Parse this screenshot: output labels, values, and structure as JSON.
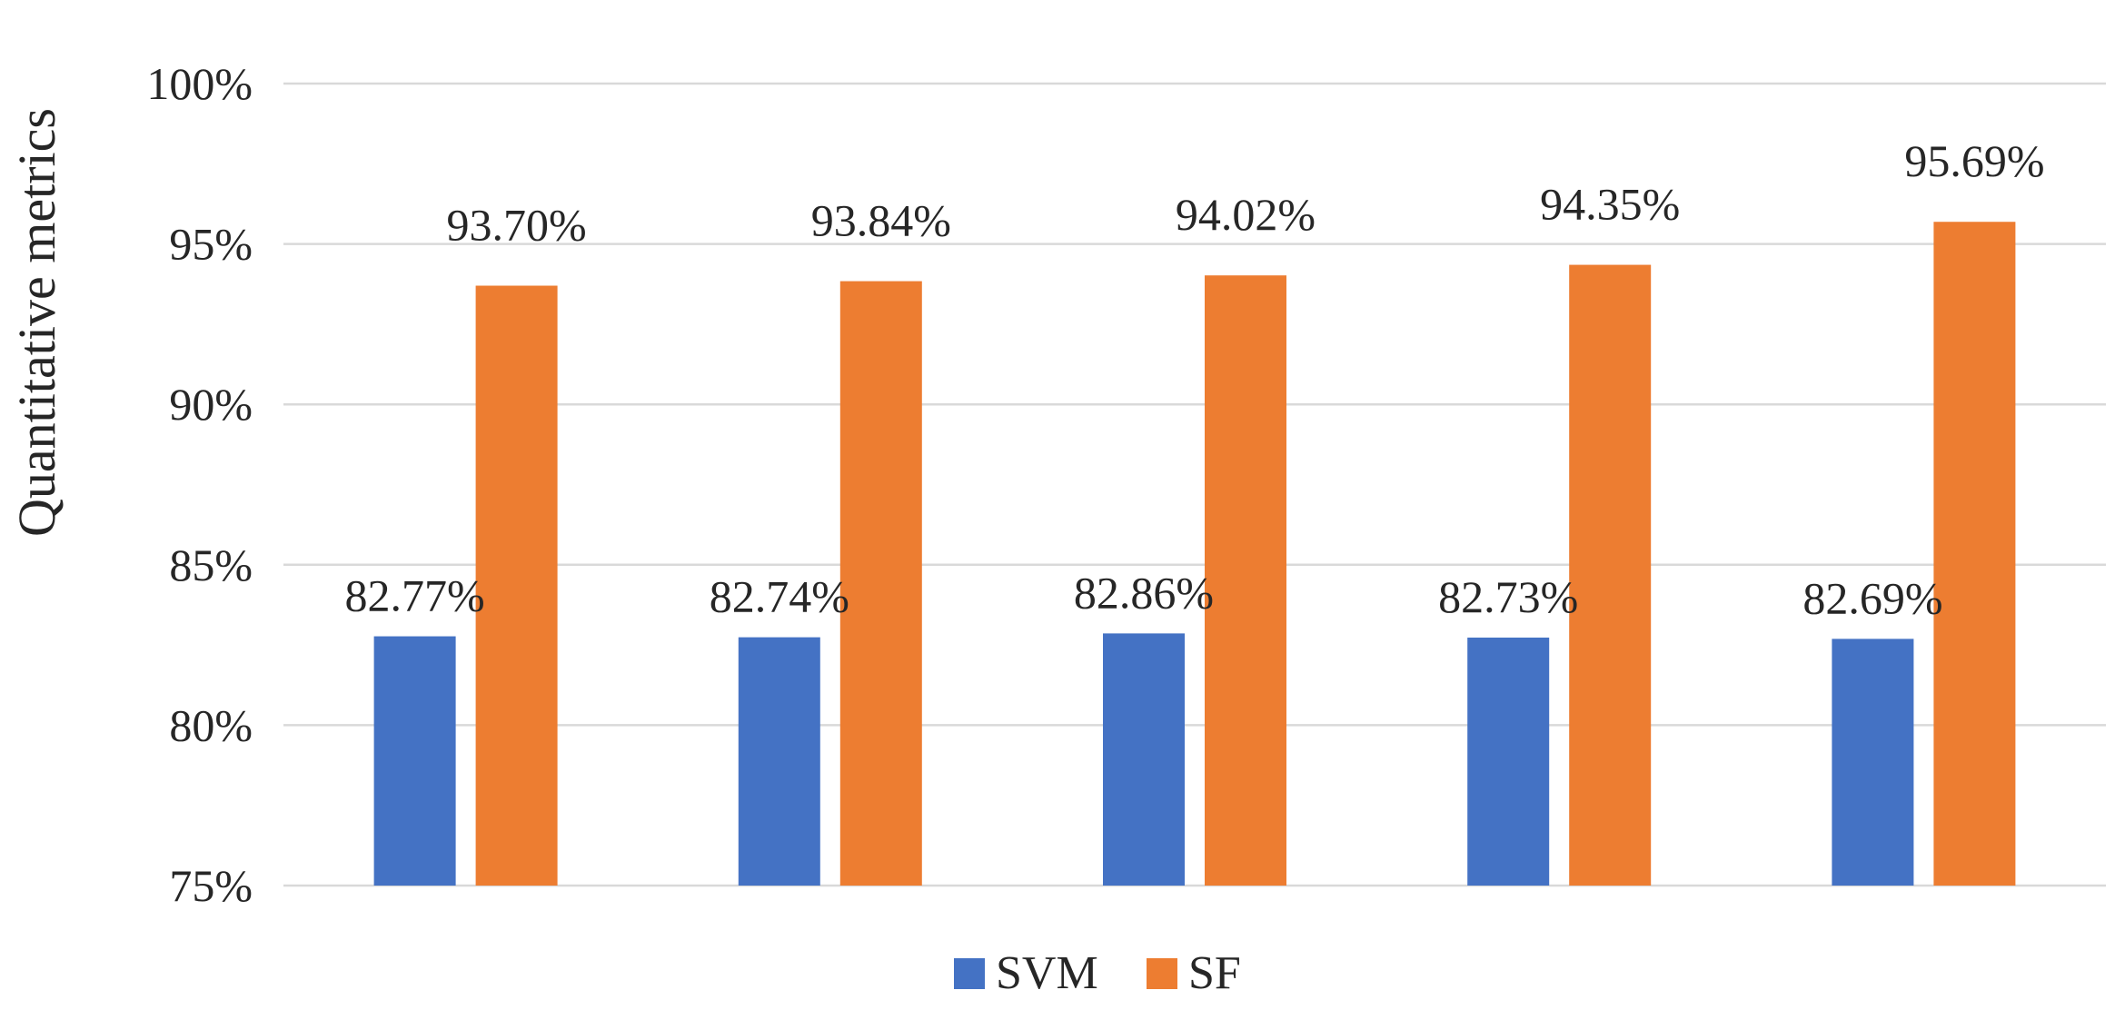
{
  "chart_data": {
    "type": "bar",
    "title": "",
    "xlabel": "",
    "ylabel": "Quantitative metrics",
    "ylim": [
      75,
      100
    ],
    "yticks": [
      75,
      80,
      85,
      90,
      95,
      100
    ],
    "ytick_labels": [
      "75%",
      "80%",
      "85%",
      "90%",
      "95%",
      "100%"
    ],
    "categories": [
      "",
      "",
      "",
      "",
      ""
    ],
    "grid": true,
    "legend_position": "bottom-center",
    "series": [
      {
        "name": "SVM",
        "color": "#4472c4",
        "values": [
          82.77,
          82.74,
          82.86,
          82.73,
          82.69
        ],
        "labels": [
          "82.77%",
          "82.74%",
          "82.86%",
          "82.73%",
          "82.69%"
        ]
      },
      {
        "name": "SF",
        "color": "#ed7d31",
        "values": [
          93.7,
          93.84,
          94.02,
          94.35,
          95.69
        ],
        "labels": [
          "93.70%",
          "93.84%",
          "94.02%",
          "94.35%",
          "95.69%"
        ]
      }
    ]
  }
}
